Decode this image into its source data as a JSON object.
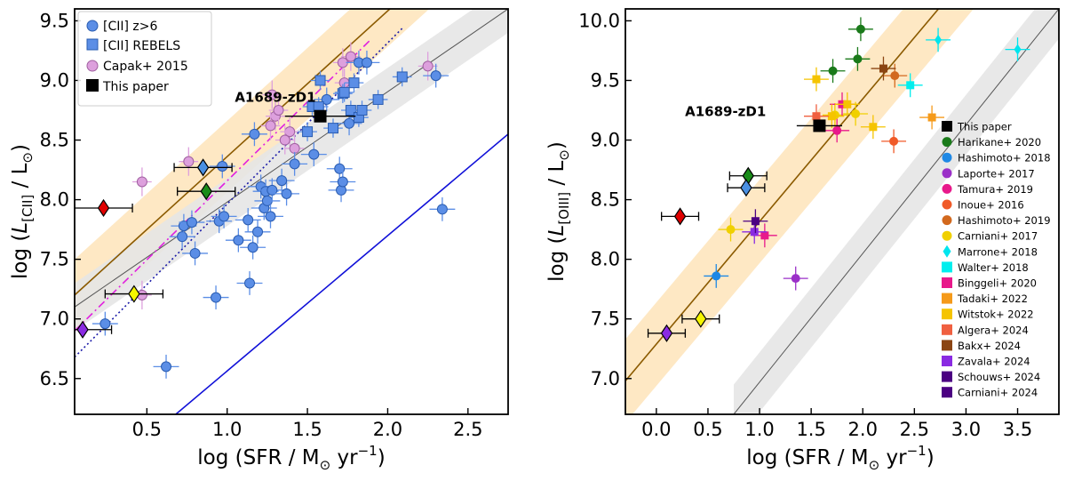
{
  "chart_data": [
    {
      "type": "scatter",
      "title": "",
      "xlabel_main": "log (SFR / M",
      "xlabel_sun": "⊙",
      "xlabel_tail": " yr",
      "xlabel_exp": "−1",
      "xlabel_close": ")",
      "ylabel_main": "log (",
      "ylabel_L": "L",
      "ylabel_sub": "[CII]",
      "ylabel_tail": " / L",
      "ylabel_sun": "⊙",
      "ylabel_close": ")",
      "xlim": [
        0.05,
        2.75
      ],
      "ylim": [
        6.2,
        9.6
      ],
      "xticks": [
        "0.5",
        "1.0",
        "1.5",
        "2.0",
        "2.5"
      ],
      "xtick_values": [
        0.5,
        1.0,
        1.5,
        2.0,
        2.5
      ],
      "yticks": [
        "6.5",
        "7.0",
        "7.5",
        "8.0",
        "8.5",
        "9.0",
        "9.5"
      ],
      "ytick_values": [
        6.5,
        7.0,
        7.5,
        8.0,
        8.5,
        9.0,
        9.5
      ],
      "annotation": "A1689-zD1",
      "annotation_at": [
        1.3,
        8.82
      ],
      "legend": [
        {
          "label": "[CII] z>6",
          "color": "#5b8ee6",
          "marker": "circle"
        },
        {
          "label": "[CII] REBELS",
          "color": "#5b8ee6",
          "marker": "square"
        },
        {
          "label": "Capak+ 2015",
          "color": "#dda0dd",
          "marker": "circle"
        },
        {
          "label": "This paper",
          "color": "#000000",
          "marker": "square"
        }
      ],
      "relations": [
        {
          "name": "orange-relation",
          "color": "#8b5a00",
          "x": [
            0.05,
            2.75
          ],
          "y": [
            7.2,
            10.5
          ],
          "band": 0.3
        },
        {
          "name": "grey-relation",
          "color": "#555555",
          "x": [
            0.05,
            2.75
          ],
          "y": [
            7.1,
            9.6
          ],
          "band": 0.2
        },
        {
          "name": "magenta-dashdot",
          "color": "#e020e0",
          "x": [
            0.05,
            1.9
          ],
          "y": [
            6.9,
            9.35
          ],
          "style": "dashdot"
        },
        {
          "name": "navy-dotted",
          "color": "#1a1aa8",
          "x": [
            0.05,
            2.1
          ],
          "y": [
            6.68,
            9.45
          ],
          "style": "dotted"
        },
        {
          "name": "blue-line",
          "color": "#1010d8",
          "x": [
            0.68,
            2.75
          ],
          "y": [
            6.2,
            8.55
          ],
          "style": "solid"
        }
      ],
      "points_z6": [
        [
          0.24,
          6.96
        ],
        [
          0.62,
          6.6
        ],
        [
          0.93,
          7.18
        ],
        [
          1.14,
          7.3
        ],
        [
          0.72,
          7.69
        ],
        [
          0.73,
          7.78
        ],
        [
          0.78,
          7.81
        ],
        [
          0.8,
          7.55
        ],
        [
          0.95,
          7.82
        ],
        [
          0.98,
          7.86
        ],
        [
          1.07,
          7.66
        ],
        [
          1.13,
          7.83
        ],
        [
          1.16,
          7.6
        ],
        [
          1.19,
          7.73
        ],
        [
          1.21,
          8.11
        ],
        [
          1.23,
          7.93
        ],
        [
          1.24,
          8.07
        ],
        [
          1.25,
          7.99
        ],
        [
          1.28,
          8.08
        ],
        [
          1.27,
          7.86
        ],
        [
          1.37,
          8.05
        ],
        [
          1.42,
          8.3
        ],
        [
          1.54,
          8.38
        ],
        [
          1.7,
          8.26
        ],
        [
          1.71,
          8.08
        ],
        [
          1.72,
          8.15
        ],
        [
          1.76,
          8.64
        ],
        [
          1.62,
          8.84
        ],
        [
          1.82,
          9.15
        ],
        [
          1.87,
          9.15
        ],
        [
          1.17,
          8.55
        ],
        [
          0.97,
          8.28
        ],
        [
          1.34,
          8.16
        ],
        [
          2.3,
          9.04
        ],
        [
          2.34,
          7.92
        ]
      ],
      "points_rebels": [
        [
          1.5,
          8.57
        ],
        [
          1.58,
          9.0
        ],
        [
          1.66,
          8.6
        ],
        [
          1.72,
          8.89
        ],
        [
          1.73,
          8.9
        ],
        [
          1.77,
          8.75
        ],
        [
          1.79,
          8.98
        ],
        [
          1.82,
          8.69
        ],
        [
          1.84,
          8.75
        ],
        [
          1.94,
          8.84
        ],
        [
          2.09,
          9.03
        ],
        [
          1.53,
          8.78
        ],
        [
          1.57,
          8.78
        ]
      ],
      "points_capak": [
        [
          0.47,
          8.15
        ],
        [
          0.76,
          8.32
        ],
        [
          0.47,
          7.2
        ],
        [
          1.3,
          8.7
        ],
        [
          1.32,
          8.75
        ],
        [
          1.39,
          8.57
        ],
        [
          1.36,
          8.5
        ],
        [
          1.42,
          8.43
        ],
        [
          1.72,
          9.15
        ],
        [
          1.73,
          8.98
        ],
        [
          1.77,
          9.2
        ],
        [
          2.25,
          9.12
        ],
        [
          1.28,
          8.88
        ],
        [
          1.27,
          8.62
        ]
      ],
      "diamonds": [
        {
          "x": 0.23,
          "y": 7.93,
          "color": "#e00000"
        },
        {
          "x": 0.87,
          "y": 8.07,
          "color": "#1a8c1a"
        },
        {
          "x": 0.85,
          "y": 8.27,
          "color": "#4a90e2"
        },
        {
          "x": 0.42,
          "y": 7.21,
          "color": "#f5f500"
        },
        {
          "x": 0.1,
          "y": 6.91,
          "color": "#8a2be2"
        }
      ],
      "this_paper": [
        1.58,
        8.7
      ]
    },
    {
      "type": "scatter",
      "title": "",
      "xlabel_main": "log (SFR / M",
      "xlabel_sun": "⊙",
      "xlabel_tail": " yr",
      "xlabel_exp": "−1",
      "xlabel_close": ")",
      "ylabel_main": "log (",
      "ylabel_L": "L",
      "ylabel_sub": "[OIII]",
      "ylabel_tail": " / L",
      "ylabel_sun": "⊙",
      "ylabel_close": ")",
      "xlim": [
        -0.3,
        3.9
      ],
      "ylim": [
        6.7,
        10.1
      ],
      "xticks": [
        "0.0",
        "0.5",
        "1.0",
        "1.5",
        "2.0",
        "2.5",
        "3.0",
        "3.5"
      ],
      "xtick_values": [
        0.0,
        0.5,
        1.0,
        1.5,
        2.0,
        2.5,
        3.0,
        3.5
      ],
      "yticks": [
        "7.0",
        "7.5",
        "8.0",
        "8.5",
        "9.0",
        "9.5",
        "10.0"
      ],
      "ytick_values": [
        7.0,
        7.5,
        8.0,
        8.5,
        9.0,
        9.5,
        10.0
      ],
      "annotation": "A1689-zD1",
      "annotation_at": [
        0.67,
        9.2
      ],
      "legend": [
        {
          "label": "This paper",
          "color": "#000000",
          "marker": "square"
        },
        {
          "label": "Harikane+ 2020",
          "color": "#1a7a1a",
          "marker": "circle"
        },
        {
          "label": "Hashimoto+ 2018",
          "color": "#1e88e5",
          "marker": "circle"
        },
        {
          "label": "Laporte+ 2017",
          "color": "#9b30c8",
          "marker": "circle"
        },
        {
          "label": "Tamura+ 2019",
          "color": "#e8198b",
          "marker": "circle"
        },
        {
          "label": "Inoue+ 2016",
          "color": "#f05a28",
          "marker": "circle"
        },
        {
          "label": "Hashimoto+ 2019",
          "color": "#d2691e",
          "marker": "circle"
        },
        {
          "label": "Carniani+ 2017",
          "color": "#f0d000",
          "marker": "circle"
        },
        {
          "label": "Marrone+ 2018",
          "color": "#00e5ee",
          "marker": "diamond"
        },
        {
          "label": "Walter+ 2018",
          "color": "#00eeee",
          "marker": "square"
        },
        {
          "label": "Binggeli+ 2020",
          "color": "#e8198b",
          "marker": "square"
        },
        {
          "label": "Tadaki+ 2022",
          "color": "#f59a1a",
          "marker": "square"
        },
        {
          "label": "Witstok+ 2022",
          "color": "#f5c400",
          "marker": "square"
        },
        {
          "label": "Algera+ 2024",
          "color": "#f06040",
          "marker": "square"
        },
        {
          "label": "Bakx+ 2024",
          "color": "#8b4513",
          "marker": "square"
        },
        {
          "label": "Zavala+ 2024",
          "color": "#8a2be2",
          "marker": "square"
        },
        {
          "label": "Schouws+ 2024",
          "color": "#4b0082",
          "marker": "square"
        },
        {
          "label": "Carniani+ 2024",
          "color": "#4b0082",
          "marker": "square"
        }
      ],
      "relations": [
        {
          "name": "orange-relation",
          "color": "#8b5a00",
          "x": [
            -0.3,
            3.9
          ],
          "y": [
            6.98,
            11.3
          ],
          "band": 0.35
        },
        {
          "name": "grey-relation",
          "color": "#555555",
          "x": [
            0.75,
            3.9
          ],
          "y": [
            6.7,
            10.1
          ],
          "band": 0.25
        }
      ],
      "points": [
        {
          "x": 1.71,
          "y": 9.58,
          "color": "#1a7a1a",
          "m": "c"
        },
        {
          "x": 1.98,
          "y": 9.93,
          "color": "#1a7a1a",
          "m": "c"
        },
        {
          "x": 1.95,
          "y": 9.68,
          "color": "#1a7a1a",
          "m": "c"
        },
        {
          "x": 0.58,
          "y": 7.86,
          "color": "#1e88e5",
          "m": "c"
        },
        {
          "x": 1.35,
          "y": 7.84,
          "color": "#9b30c8",
          "m": "c"
        },
        {
          "x": 1.75,
          "y": 9.08,
          "color": "#e8198b",
          "m": "c"
        },
        {
          "x": 2.3,
          "y": 8.99,
          "color": "#f05a28",
          "m": "c"
        },
        {
          "x": 2.31,
          "y": 9.54,
          "color": "#d2691e",
          "m": "c"
        },
        {
          "x": 0.72,
          "y": 8.25,
          "color": "#f0d000",
          "m": "c"
        },
        {
          "x": 1.73,
          "y": 9.21,
          "color": "#f0d000",
          "m": "c"
        },
        {
          "x": 1.93,
          "y": 9.22,
          "color": "#f0d000",
          "m": "c"
        },
        {
          "x": 2.73,
          "y": 9.84,
          "color": "#00e5ee",
          "m": "d"
        },
        {
          "x": 3.5,
          "y": 9.76,
          "color": "#00e5ee",
          "m": "d"
        },
        {
          "x": 2.46,
          "y": 9.46,
          "color": "#00eeee",
          "m": "s"
        },
        {
          "x": 1.8,
          "y": 9.3,
          "color": "#e8198b",
          "m": "s"
        },
        {
          "x": 1.05,
          "y": 8.2,
          "color": "#e8198b",
          "m": "s"
        },
        {
          "x": 2.67,
          "y": 9.19,
          "color": "#f59a1a",
          "m": "s"
        },
        {
          "x": 1.55,
          "y": 9.51,
          "color": "#f5c400",
          "m": "s"
        },
        {
          "x": 1.7,
          "y": 9.2,
          "color": "#f5c400",
          "m": "s"
        },
        {
          "x": 1.85,
          "y": 9.3,
          "color": "#f5c400",
          "m": "s"
        },
        {
          "x": 2.1,
          "y": 9.11,
          "color": "#f5c400",
          "m": "s"
        },
        {
          "x": 1.55,
          "y": 9.2,
          "color": "#f06040",
          "m": "s"
        },
        {
          "x": 2.2,
          "y": 9.6,
          "color": "#8b4513",
          "m": "s"
        },
        {
          "x": 0.95,
          "y": 8.23,
          "color": "#8a2be2",
          "m": "s"
        },
        {
          "x": 0.96,
          "y": 8.32,
          "color": "#4b0082",
          "m": "s"
        }
      ],
      "diamonds": [
        {
          "x": 0.23,
          "y": 8.36,
          "color": "#e00000"
        },
        {
          "x": 0.89,
          "y": 8.7,
          "color": "#1a8c1a"
        },
        {
          "x": 0.87,
          "y": 8.6,
          "color": "#4a90e2"
        },
        {
          "x": 0.43,
          "y": 7.5,
          "color": "#f5f500"
        },
        {
          "x": 0.1,
          "y": 7.38,
          "color": "#8a2be2"
        }
      ],
      "this_paper": [
        1.58,
        9.12
      ]
    }
  ]
}
